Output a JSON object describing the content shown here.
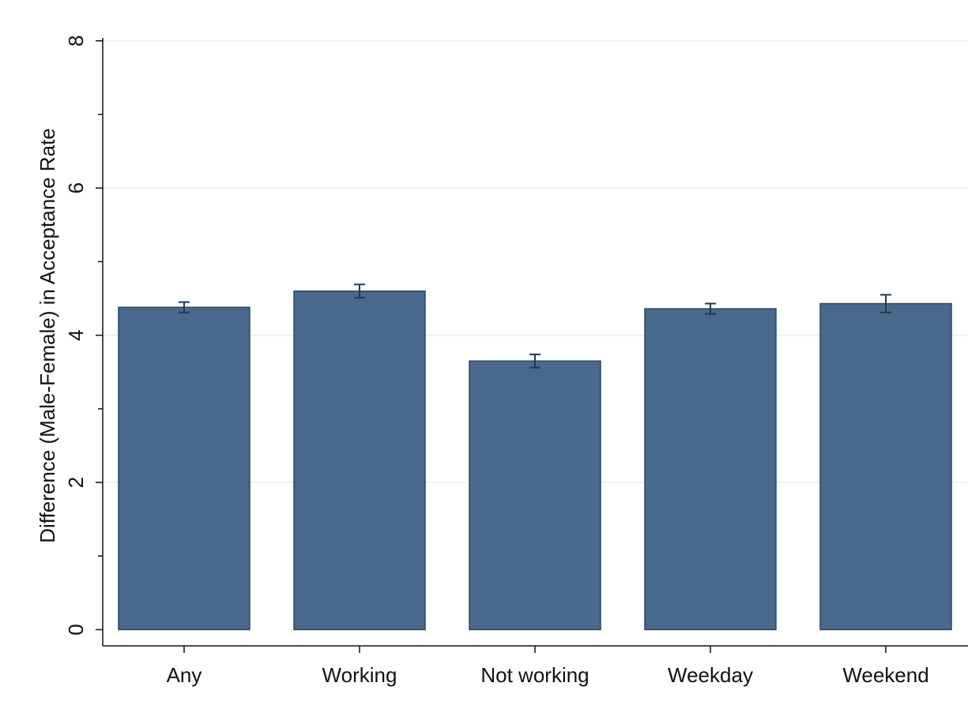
{
  "chart_data": {
    "type": "bar",
    "y_label": "Difference (Male-Female) in Acceptance Rate",
    "categories": [
      "Any",
      "Working",
      "Not working",
      "Weekday",
      "Weekend"
    ],
    "values": [
      4.38,
      4.6,
      3.65,
      4.36,
      4.43
    ],
    "errors": [
      0.07,
      0.09,
      0.09,
      0.07,
      0.12
    ],
    "color": "#48698b",
    "edge_color": "#2c4864",
    "error_color": "#1e3a56",
    "ylim": [
      -0.22,
      8.04
    ],
    "yticks": [
      0,
      2,
      4,
      6,
      8
    ],
    "minor_yticks": [
      1,
      3,
      5,
      7
    ],
    "grid": true
  }
}
